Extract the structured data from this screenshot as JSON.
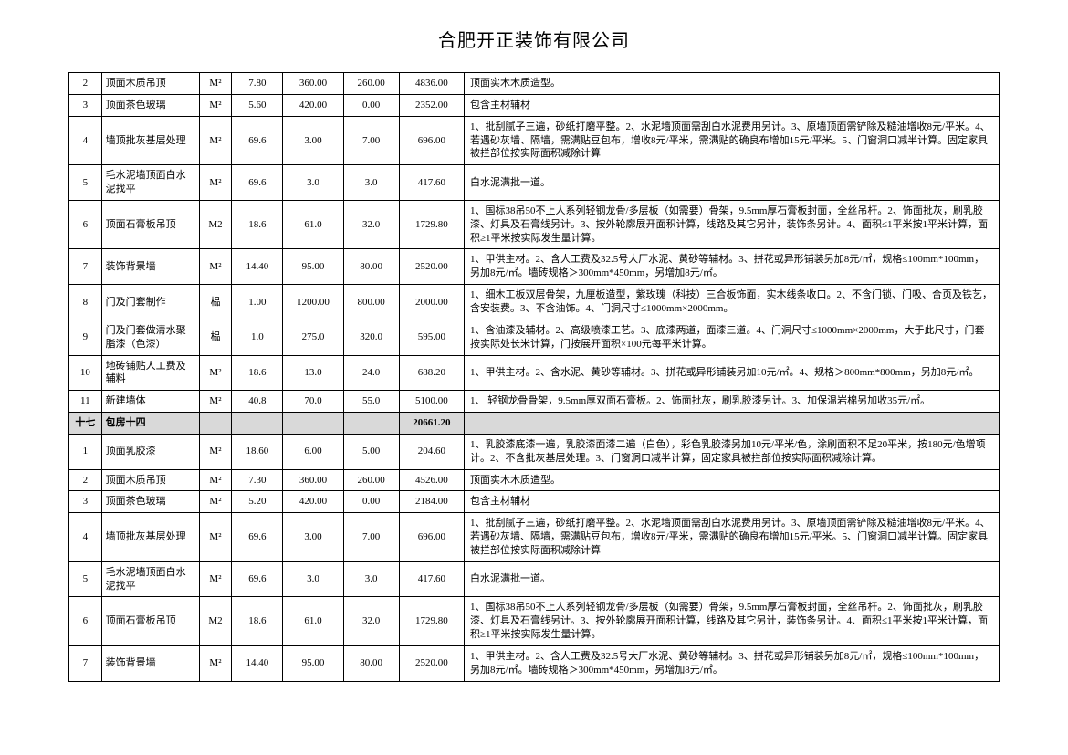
{
  "title": "合肥开正装饰有限公司",
  "rows": [
    {
      "no": "2",
      "name": "顶面木质吊顶",
      "unit": "M²",
      "qty": "7.80",
      "price": "360.00",
      "labor": "260.00",
      "total": "4836.00",
      "desc": "顶面实木木质造型。"
    },
    {
      "no": "3",
      "name": "顶面茶色玻璃",
      "unit": "M²",
      "qty": "5.60",
      "price": "420.00",
      "labor": "0.00",
      "total": "2352.00",
      "desc": "包含主材辅材"
    },
    {
      "no": "4",
      "name": "墙顶批灰基层处理",
      "unit": "M²",
      "qty": "69.6",
      "price": "3.00",
      "labor": "7.00",
      "total": "696.00",
      "desc": "1、批刮腻子三遍，砂纸打磨平整。2、水泥墙顶面需刮白水泥费用另计。3、原墙顶面需铲除及糙油增收8元/平米。4、若遇砂灰墙、隔墙，需满贴豆包布，增收8元/平米，需满贴的确良布增加15元/平米。5、门窗洞口减半计算。固定家具被拦部位按实际面积减除计算"
    },
    {
      "no": "5",
      "name": "毛水泥墙顶面白水泥找平",
      "unit": "M²",
      "qty": "69.6",
      "price": "3.0",
      "labor": "3.0",
      "total": "417.60",
      "desc": "白水泥满批一道。"
    },
    {
      "no": "6",
      "name": "顶面石膏板吊顶",
      "unit": "M2",
      "qty": "18.6",
      "price": "61.0",
      "labor": "32.0",
      "total": "1729.80",
      "desc": "1、国标38吊50不上人系列轻钢龙骨/多层板（如需要）骨架，9.5mm厚石膏板封面，全丝吊杆。2、饰面批灰，刷乳胶漆、灯具及石膏线另计。3、按外轮廓展开面积计算，线路及其它另计，装饰条另计。4、面积≤1平米按1平米计算，面积≥1平米按实际发生量计算。"
    },
    {
      "no": "7",
      "name": "装饰背景墙",
      "unit": "M²",
      "qty": "14.40",
      "price": "95.00",
      "labor": "80.00",
      "total": "2520.00",
      "desc": "1、甲供主材。2、含人工费及32.5号大厂水泥、黄砂等辅材。3、拼花或异形铺装另加8元/㎡，规格≤100mm*100mm，另加8元/㎡。墙砖规格＞300mm*450mm，另增加8元/㎡。"
    },
    {
      "no": "8",
      "name": "门及门套制作",
      "unit": "榀",
      "qty": "1.00",
      "price": "1200.00",
      "labor": "800.00",
      "total": "2000.00",
      "desc": "1、细木工板双层骨架，九厘板造型，紫玫瑰（科技）三合板饰面，实木线条收口。2、不含门锁、门吸、合页及铁艺，含安装费。3、不含油饰。4、门洞尺寸≤1000mm×2000mm。"
    },
    {
      "no": "9",
      "name": "门及门套做清水聚脂漆（色漆）",
      "unit": "榀",
      "qty": "1.0",
      "price": "275.0",
      "labor": "320.0",
      "total": "595.00",
      "desc": "1、含油漆及辅材。2、高级喷漆工艺。3、底漆两道，面漆三道。4、门洞尺寸≤1000mm×2000mm，大于此尺寸，门套按实际处长米计算，门按展开面积×100元每平米计算。"
    },
    {
      "no": "10",
      "name": "地砖铺贴人工费及辅料",
      "unit": "M²",
      "qty": "18.6",
      "price": "13.0",
      "labor": "24.0",
      "total": "688.20",
      "desc": "1、甲供主材。2、含水泥、黄砂等辅材。3、拼花或异形铺装另加10元/㎡。4、规格＞800mm*800mm，另加8元/㎡。"
    },
    {
      "no": "11",
      "name": "新建墙体",
      "unit": "M²",
      "qty": "40.8",
      "price": "70.0",
      "labor": "55.0",
      "total": "5100.00",
      "desc": "1、 轻钢龙骨骨架，9.5mm厚双面石膏板。2、饰面批灰，刷乳胶漆另计。3、加保温岩棉另加收35元/㎡。"
    }
  ],
  "section": {
    "no": "十七",
    "label": "包房十四",
    "total": "20661.20"
  },
  "rows2": [
    {
      "no": "1",
      "name": "顶面乳胶漆",
      "unit": "M²",
      "qty": "18.60",
      "price": "6.00",
      "labor": "5.00",
      "total": "204.60",
      "desc": "1、乳胶漆底漆一遍，乳胶漆面漆二遍（白色），彩色乳胶漆另加10元/平米/色，涂刷面积不足20平米，按180元/色增项计。2、不含批灰基层处理。3、门窗洞口减半计算，固定家具被拦部位按实际面积减除计算。"
    },
    {
      "no": "2",
      "name": "顶面木质吊顶",
      "unit": "M²",
      "qty": "7.30",
      "price": "360.00",
      "labor": "260.00",
      "total": "4526.00",
      "desc": "顶面实木木质造型。"
    },
    {
      "no": "3",
      "name": "顶面茶色玻璃",
      "unit": "M²",
      "qty": "5.20",
      "price": "420.00",
      "labor": "0.00",
      "total": "2184.00",
      "desc": "包含主材辅材"
    },
    {
      "no": "4",
      "name": "墙顶批灰基层处理",
      "unit": "M²",
      "qty": "69.6",
      "price": "3.00",
      "labor": "7.00",
      "total": "696.00",
      "desc": "1、批刮腻子三遍，砂纸打磨平整。2、水泥墙顶面需刮白水泥费用另计。3、原墙顶面需铲除及糙油增收8元/平米。4、若遇砂灰墙、隔墙，需满贴豆包布，增收8元/平米，需满贴的确良布增加15元/平米。5、门窗洞口减半计算。固定家具被拦部位按实际面积减除计算"
    },
    {
      "no": "5",
      "name": "毛水泥墙顶面白水泥找平",
      "unit": "M²",
      "qty": "69.6",
      "price": "3.0",
      "labor": "3.0",
      "total": "417.60",
      "desc": "白水泥满批一道。"
    },
    {
      "no": "6",
      "name": "顶面石膏板吊顶",
      "unit": "M2",
      "qty": "18.6",
      "price": "61.0",
      "labor": "32.0",
      "total": "1729.80",
      "desc": "1、国标38吊50不上人系列轻钢龙骨/多层板（如需要）骨架，9.5mm厚石膏板封面，全丝吊杆。2、饰面批灰，刷乳胶漆、灯具及石膏线另计。3、按外轮廓展开面积计算，线路及其它另计，装饰条另计。4、面积≤1平米按1平米计算，面积≥1平米按实际发生量计算。"
    },
    {
      "no": "7",
      "name": "装饰背景墙",
      "unit": "M²",
      "qty": "14.40",
      "price": "95.00",
      "labor": "80.00",
      "total": "2520.00",
      "desc": "1、甲供主材。2、含人工费及32.5号大厂水泥、黄砂等辅材。3、拼花或异形铺装另加8元/㎡，规格≤100mm*100mm，另加8元/㎡。墙砖规格＞300mm*450mm，另增加8元/㎡。"
    }
  ]
}
